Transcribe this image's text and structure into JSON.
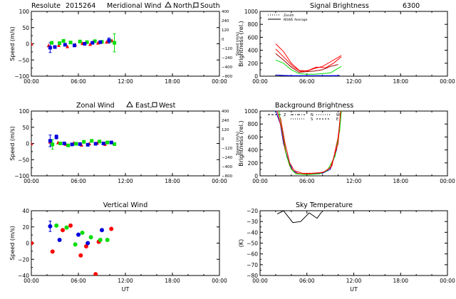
{
  "header": {
    "station": "Resolute",
    "date_code": "2015264"
  },
  "colors": {
    "red": "#ff0000",
    "green": "#00dd00",
    "blue": "#0000dd",
    "dark_red": "#990000",
    "black": "#000000"
  },
  "chart_data": [
    {
      "id": "meridional",
      "type": "scatter",
      "title": "Meridional Wind",
      "legend_text": [
        "North,",
        "South"
      ],
      "legend_symbols": [
        "triangle",
        "square"
      ],
      "ylabel": "Speed (m/s)",
      "y2label": "Speed (m/s)",
      "ylim": [
        -100,
        100
      ],
      "yticks": [
        "100",
        "50",
        "0",
        "−50",
        "−100"
      ],
      "y2ticks": [
        "400",
        "240",
        "120",
        "0",
        "−120",
        "−240",
        "−400",
        "−800"
      ],
      "xlim": [
        0,
        24
      ],
      "xticks": [
        "00:00",
        "06:00",
        "12:00",
        "18:00",
        "00:00"
      ],
      "xlabel": "",
      "series": [
        {
          "color": "red",
          "points": [
            [
              0.0,
              0
            ],
            [
              2.2,
              -5
            ],
            [
              3.5,
              -4
            ],
            [
              4.6,
              -8
            ],
            [
              5.6,
              -2
            ],
            [
              6.5,
              2
            ],
            [
              7.5,
              -1
            ],
            [
              8.5,
              3
            ],
            [
              9.6,
              6
            ],
            [
              10.3,
              10
            ]
          ]
        },
        {
          "color": "green",
          "points": [
            [
              2.6,
              3
            ],
            [
              3.6,
              2
            ],
            [
              4.1,
              9
            ],
            [
              5.0,
              4
            ],
            [
              6.2,
              7
            ],
            [
              7.1,
              5
            ],
            [
              8.1,
              8
            ],
            [
              9.0,
              6
            ],
            [
              10.0,
              9
            ],
            [
              10.6,
              3
            ]
          ]
        },
        {
          "color": "blue",
          "points": [
            [
              2.4,
              -12
            ],
            [
              3.0,
              -10
            ],
            [
              4.3,
              -3
            ],
            [
              5.5,
              -5
            ],
            [
              6.8,
              0
            ],
            [
              7.8,
              3
            ],
            [
              8.8,
              5
            ],
            [
              9.9,
              10
            ]
          ]
        }
      ],
      "error_bars": [
        {
          "color": "blue",
          "x": 2.4,
          "y": -12,
          "err": 15
        },
        {
          "color": "green",
          "x": 10.6,
          "y": 3,
          "err": 28
        },
        {
          "color": "blue",
          "x": 9.9,
          "y": 10,
          "err": 8
        }
      ]
    },
    {
      "id": "zonal",
      "type": "scatter",
      "title": "Zonal Wind",
      "legend_text": [
        "East,",
        "West"
      ],
      "legend_symbols": [
        "triangle",
        "square"
      ],
      "ylabel": "Speed (m/s)",
      "y2label": "Speed (m/s)",
      "ylim": [
        -100,
        100
      ],
      "yticks": [
        "100",
        "50",
        "0",
        "−50",
        "−100"
      ],
      "y2ticks": [
        "400",
        "240",
        "120",
        "0",
        "−120",
        "−240",
        "−400",
        "−800"
      ],
      "xlim": [
        0,
        24
      ],
      "xticks": [
        "00:00",
        "06:00",
        "12:00",
        "18:00",
        "00:00"
      ],
      "xlabel": "",
      "series": [
        {
          "color": "red",
          "points": [
            [
              0.0,
              0
            ],
            [
              2.4,
              5
            ],
            [
              3.4,
              3
            ],
            [
              4.4,
              -2
            ],
            [
              5.4,
              2
            ],
            [
              6.4,
              -4
            ],
            [
              7.4,
              0
            ],
            [
              8.4,
              2
            ],
            [
              9.4,
              -2
            ],
            [
              10.3,
              5
            ]
          ]
        },
        {
          "color": "green",
          "points": [
            [
              2.7,
              -3
            ],
            [
              3.7,
              0
            ],
            [
              4.7,
              -6
            ],
            [
              5.7,
              -1
            ],
            [
              6.7,
              5
            ],
            [
              7.7,
              8
            ],
            [
              8.7,
              6
            ],
            [
              9.7,
              3
            ],
            [
              10.6,
              -2
            ]
          ]
        },
        {
          "color": "blue",
          "points": [
            [
              2.4,
              8
            ],
            [
              3.2,
              20
            ],
            [
              4.2,
              0
            ],
            [
              5.2,
              -3
            ],
            [
              6.2,
              -2
            ],
            [
              7.2,
              -4
            ],
            [
              8.2,
              -1
            ],
            [
              9.2,
              0
            ],
            [
              10.2,
              3
            ]
          ]
        }
      ],
      "error_bars": [
        {
          "color": "blue",
          "x": 2.4,
          "y": 8,
          "err": 18
        },
        {
          "color": "green",
          "x": 2.7,
          "y": -3,
          "err": 15
        },
        {
          "color": "blue",
          "x": 3.2,
          "y": 20,
          "err": 6
        }
      ]
    },
    {
      "id": "vertical",
      "type": "scatter",
      "title": "Vertical Wind",
      "ylabel": "Speed (m/s)",
      "ylim": [
        -50,
        50
      ],
      "yticks": [
        "40",
        "20",
        "0",
        "−20",
        "−40"
      ],
      "xlim": [
        0,
        24
      ],
      "xticks": [
        "00:00",
        "06:00",
        "12:00",
        "18:00",
        "00:00"
      ],
      "xlabel": "UT",
      "series": [
        {
          "color": "red",
          "points": [
            [
              0.0,
              0
            ],
            [
              2.7,
              -13
            ],
            [
              4.0,
              20
            ],
            [
              5.0,
              27
            ],
            [
              6.3,
              -19
            ],
            [
              7.0,
              -5
            ],
            [
              8.2,
              -48
            ],
            [
              8.6,
              2
            ],
            [
              10.2,
              22
            ]
          ]
        },
        {
          "color": "green",
          "points": [
            [
              3.2,
              27
            ],
            [
              4.5,
              24
            ],
            [
              5.6,
              -2
            ],
            [
              6.5,
              16
            ],
            [
              7.6,
              9
            ],
            [
              8.8,
              5
            ],
            [
              9.7,
              5
            ]
          ]
        },
        {
          "color": "blue",
          "points": [
            [
              2.4,
              26
            ],
            [
              3.6,
              5
            ],
            [
              6.0,
              13
            ],
            [
              7.2,
              0
            ],
            [
              9.0,
              20
            ]
          ]
        }
      ],
      "error_bars": [
        {
          "color": "blue",
          "x": 2.4,
          "y": 26,
          "err": 8
        }
      ]
    },
    {
      "id": "signal",
      "type": "line",
      "title": "Signal Brightness",
      "title_wavelength": "6300",
      "legend": [
        "Zenith",
        "NSWE Average"
      ],
      "ylabel": "Brightness (rel.)",
      "ylim": [
        0,
        1000
      ],
      "yticks": [
        "1000",
        "800",
        "600",
        "400",
        "200",
        "0"
      ],
      "xlim": [
        0,
        24
      ],
      "xticks": [
        "00:00",
        "06:00",
        "12:00",
        "18:00",
        "00:00"
      ],
      "xlabel": "",
      "series": [
        {
          "color": "red",
          "points": [
            [
              2.0,
              500
            ],
            [
              3.0,
              380
            ],
            [
              4.0,
              200
            ],
            [
              5.0,
              90
            ],
            [
              6.0,
              80
            ],
            [
              7.0,
              120
            ],
            [
              8.0,
              150
            ],
            [
              9.0,
              220
            ],
            [
              10.4,
              320
            ]
          ]
        },
        {
          "color": "red",
          "points": [
            [
              2.0,
              420
            ],
            [
              3.0,
              300
            ],
            [
              4.2,
              150
            ],
            [
              5.2,
              70
            ],
            [
              6.2,
              90
            ],
            [
              7.2,
              140
            ],
            [
              8.4,
              130
            ],
            [
              9.4,
              200
            ],
            [
              10.4,
              300
            ]
          ]
        },
        {
          "color": "dark_red",
          "points": [
            [
              2.0,
              350
            ],
            [
              3.0,
              250
            ],
            [
              4.0,
              140
            ],
            [
              5.0,
              60
            ],
            [
              6.0,
              70
            ],
            [
              7.0,
              80
            ],
            [
              8.0,
              100
            ],
            [
              9.0,
              150
            ],
            [
              10.0,
              180
            ]
          ]
        },
        {
          "color": "green",
          "points": [
            [
              2.0,
              250
            ],
            [
              3.0,
              200
            ],
            [
              4.0,
              100
            ],
            [
              5.0,
              40
            ],
            [
              6.0,
              30
            ],
            [
              7.0,
              30
            ],
            [
              8.0,
              40
            ],
            [
              9.0,
              50
            ],
            [
              10.4,
              150
            ]
          ]
        },
        {
          "color": "blue",
          "points": [
            [
              2.0,
              20
            ],
            [
              3.0,
              10
            ],
            [
              4.0,
              5
            ],
            [
              6.0,
              5
            ],
            [
              8.0,
              5
            ],
            [
              10.0,
              5
            ]
          ]
        },
        {
          "color": "blue",
          "points": [
            [
              2.2,
              15
            ],
            [
              4.0,
              8
            ],
            [
              8.0,
              8
            ],
            [
              10.2,
              10
            ]
          ]
        }
      ]
    },
    {
      "id": "background",
      "type": "line",
      "title": "Background Brightness",
      "legend": [
        "Z",
        "N",
        "S",
        "W",
        "E"
      ],
      "ylabel": "Brightness (rel.)",
      "ylim": [
        0,
        1000
      ],
      "yticks": [
        "1000",
        "800",
        "600",
        "400",
        "200",
        "0"
      ],
      "xlim": [
        0,
        24
      ],
      "xticks": [
        "00:00",
        "06:00",
        "12:00",
        "18:00",
        "00:00"
      ],
      "xlabel": "",
      "series": [
        {
          "color": "blue",
          "points": [
            [
              2.0,
              1000
            ],
            [
              2.6,
              800
            ],
            [
              3.0,
              500
            ],
            [
              3.6,
              250
            ],
            [
              4.2,
              80
            ],
            [
              5.0,
              30
            ],
            [
              6.0,
              25
            ],
            [
              7.0,
              30
            ],
            [
              8.0,
              40
            ],
            [
              9.0,
              100
            ],
            [
              9.8,
              400
            ],
            [
              10.4,
              1000
            ]
          ]
        },
        {
          "color": "red",
          "points": [
            [
              2.2,
              1000
            ],
            [
              2.8,
              700
            ],
            [
              3.2,
              400
            ],
            [
              3.8,
              150
            ],
            [
              4.4,
              50
            ],
            [
              5.2,
              30
            ],
            [
              6.2,
              30
            ],
            [
              7.2,
              40
            ],
            [
              8.2,
              60
            ],
            [
              9.2,
              150
            ],
            [
              10.0,
              600
            ],
            [
              10.4,
              1000
            ]
          ]
        },
        {
          "color": "green",
          "points": [
            [
              2.4,
              1000
            ],
            [
              3.0,
              600
            ],
            [
              3.4,
              300
            ],
            [
              4.0,
              100
            ],
            [
              4.6,
              30
            ],
            [
              6.0,
              20
            ],
            [
              7.6,
              30
            ],
            [
              8.6,
              80
            ],
            [
              9.6,
              300
            ],
            [
              10.2,
              700
            ],
            [
              10.4,
              1000
            ]
          ]
        },
        {
          "color": "red",
          "points": [
            [
              2.6,
              900
            ],
            [
              3.2,
              500
            ],
            [
              3.8,
              200
            ],
            [
              4.4,
              80
            ],
            [
              5.4,
              40
            ],
            [
              6.6,
              40
            ],
            [
              8.0,
              50
            ],
            [
              9.0,
              120
            ],
            [
              10.0,
              500
            ],
            [
              10.3,
              1000
            ]
          ]
        }
      ]
    },
    {
      "id": "sky_temp",
      "type": "line",
      "title": "Sky Temperature",
      "ylabel": "(K)",
      "ylim": [
        -80,
        -20
      ],
      "yticks": [
        "−20",
        "−30",
        "−40",
        "−50",
        "−60",
        "−70",
        "−80"
      ],
      "xlim": [
        0,
        24
      ],
      "xticks": [
        "00:00",
        "06:00",
        "12:00",
        "18:00",
        "00:00"
      ],
      "xlabel": "UT",
      "series": [
        {
          "color": "black",
          "points": [
            [
              2.2,
              -23
            ],
            [
              3.0,
              -20
            ],
            [
              4.2,
              -31
            ],
            [
              5.2,
              -30
            ],
            [
              6.3,
              -22
            ],
            [
              7.3,
              -27
            ],
            [
              7.9,
              -21
            ]
          ]
        }
      ]
    }
  ]
}
